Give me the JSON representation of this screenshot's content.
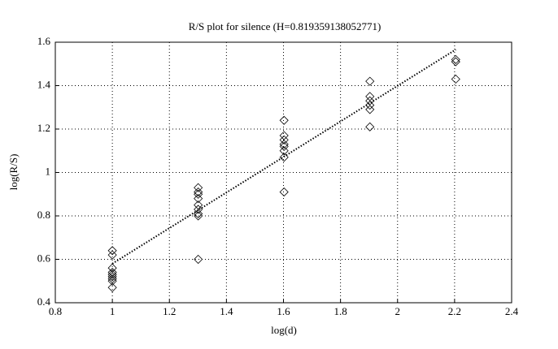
{
  "chart_data": {
    "type": "scatter",
    "title": "R/S plot for silence (H=0.819359138052771)",
    "xlabel": "log(d)",
    "ylabel": "log(R/S)",
    "xlim": [
      0.8,
      2.4
    ],
    "ylim": [
      0.4,
      1.6
    ],
    "xticks": [
      0.8,
      1,
      1.2,
      1.4,
      1.6,
      1.8,
      2,
      2.2,
      2.4
    ],
    "yticks": [
      0.4,
      0.6,
      0.8,
      1,
      1.2,
      1.4,
      1.6
    ],
    "grid": true,
    "series": [
      {
        "mode": "markers",
        "marker": "diamond",
        "color": "#000000",
        "x": [
          1,
          1,
          1,
          1,
          1,
          1,
          1,
          1,
          1,
          1.301,
          1.301,
          1.301,
          1.301,
          1.301,
          1.301,
          1.301,
          1.301,
          1.301,
          1.602,
          1.602,
          1.602,
          1.602,
          1.602,
          1.602,
          1.602,
          1.602,
          1.903,
          1.903,
          1.903,
          1.903,
          1.903,
          1.903,
          2.204,
          2.204,
          2.204
        ],
        "values": [
          0.64,
          0.62,
          0.56,
          0.54,
          0.53,
          0.52,
          0.51,
          0.5,
          0.47,
          0.93,
          0.91,
          0.9,
          0.88,
          0.85,
          0.83,
          0.81,
          0.8,
          0.6,
          1.24,
          1.17,
          1.15,
          1.13,
          1.12,
          1.1,
          1.07,
          0.91,
          1.42,
          1.35,
          1.33,
          1.31,
          1.29,
          1.21,
          1.52,
          1.51,
          1.43
        ]
      },
      {
        "mode": "line",
        "style": "dotted",
        "color": "#000000",
        "x": [
          1,
          2.204
        ],
        "values": [
          0.58,
          1.566
        ]
      }
    ]
  }
}
